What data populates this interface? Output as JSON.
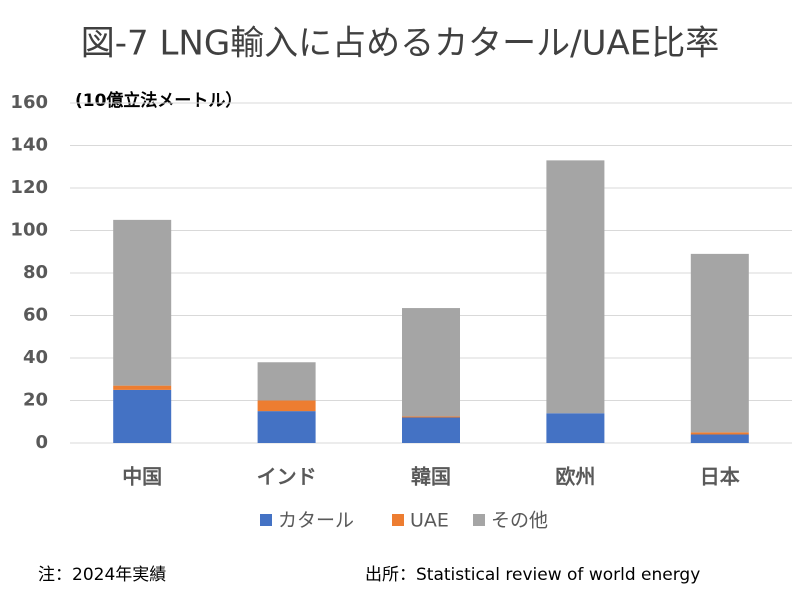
{
  "chart_data": {
    "type": "stacked_bar",
    "title": "図-7 LNG輸入に占めるカタール/UAE比率",
    "unit_label": "(10億立法メートル）",
    "categories": [
      "中国",
      "インド",
      "韓国",
      "欧州",
      "日本"
    ],
    "series": [
      {
        "name": "カタール",
        "color": "#4472c4",
        "values": [
          25,
          15,
          12,
          14,
          4
        ]
      },
      {
        "name": "UAE",
        "color": "#ed7d31",
        "values": [
          2,
          5,
          0.5,
          0,
          1
        ]
      },
      {
        "name": "その他",
        "color": "#a5a5a5",
        "values": [
          78,
          18,
          51,
          119,
          84
        ]
      }
    ],
    "ylim": [
      0,
      160
    ],
    "yticks": [
      0,
      20,
      40,
      60,
      80,
      100,
      120,
      140,
      160
    ],
    "grid": true,
    "legend": "bottom",
    "note": "注：2024年実績",
    "source": "出所：Statistical  review of world energy"
  }
}
